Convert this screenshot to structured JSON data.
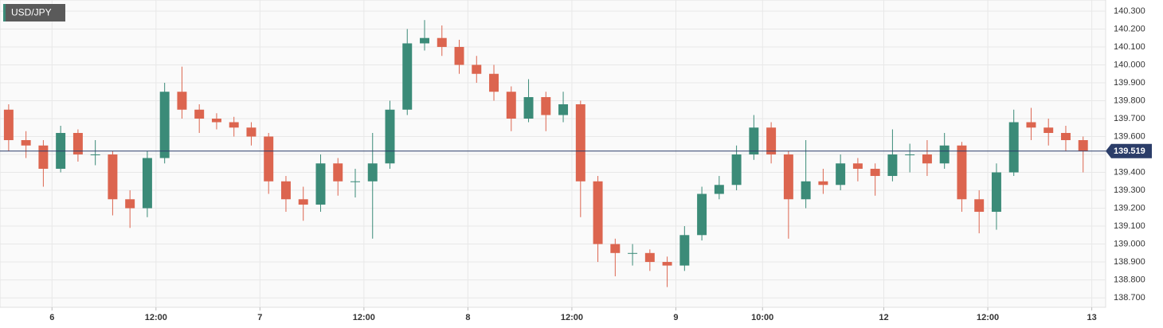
{
  "chart_data": {
    "type": "candlestick",
    "symbol": "USD/JPY",
    "x": [
      -5,
      -3,
      -1,
      1,
      3,
      5,
      7,
      9,
      11,
      13,
      15,
      17,
      19,
      21,
      23,
      25,
      27,
      29,
      31,
      33,
      35,
      37,
      39,
      41,
      43,
      45,
      47,
      49,
      51,
      53,
      55,
      57,
      59,
      61,
      63,
      65,
      67,
      69,
      71,
      73,
      75,
      77,
      79,
      81,
      83,
      85,
      87,
      89,
      91,
      93,
      95,
      97,
      99,
      101,
      103,
      105,
      107,
      109,
      111,
      113,
      115,
      117,
      119
    ],
    "open": [
      139.75,
      139.58,
      139.55,
      139.42,
      139.62,
      139.5,
      139.5,
      139.25,
      139.2,
      139.48,
      139.85,
      139.75,
      139.7,
      139.68,
      139.65,
      139.6,
      139.35,
      139.25,
      139.22,
      139.45,
      139.35,
      139.35,
      139.45,
      139.75,
      140.12,
      140.15,
      140.1,
      140.0,
      139.95,
      139.85,
      139.7,
      139.82,
      139.72,
      139.78,
      139.35,
      139.0,
      138.95,
      138.95,
      138.9,
      138.88,
      139.05,
      139.28,
      139.33,
      139.5,
      139.65,
      139.5,
      139.25,
      139.35,
      139.33,
      139.45,
      139.42,
      139.38,
      139.5,
      139.5,
      139.45,
      139.55,
      139.25,
      139.18,
      139.4,
      139.68,
      139.65,
      139.62,
      139.58
    ],
    "high": [
      139.78,
      139.63,
      139.58,
      139.66,
      139.64,
      139.58,
      139.52,
      139.3,
      139.52,
      139.9,
      139.99,
      139.78,
      139.73,
      139.71,
      139.68,
      139.62,
      139.38,
      139.32,
      139.5,
      139.48,
      139.42,
      139.62,
      139.8,
      140.2,
      140.25,
      140.22,
      140.14,
      140.05,
      140.0,
      139.88,
      139.92,
      139.85,
      139.85,
      139.8,
      139.38,
      139.03,
      139.0,
      138.97,
      138.93,
      139.1,
      139.32,
      139.38,
      139.55,
      139.72,
      139.68,
      139.52,
      139.58,
      139.42,
      139.5,
      139.48,
      139.45,
      139.64,
      139.56,
      139.58,
      139.62,
      139.57,
      139.3,
      139.45,
      139.75,
      139.76,
      139.7,
      139.66,
      139.6
    ],
    "low": [
      139.52,
      139.48,
      139.32,
      139.4,
      139.46,
      139.44,
      139.16,
      139.09,
      139.15,
      139.45,
      139.7,
      139.62,
      139.64,
      139.6,
      139.55,
      139.28,
      139.18,
      139.13,
      139.18,
      139.27,
      139.26,
      139.03,
      139.42,
      139.72,
      140.08,
      140.05,
      139.95,
      139.9,
      139.8,
      139.63,
      139.68,
      139.63,
      139.68,
      139.15,
      138.9,
      138.82,
      138.88,
      138.85,
      138.76,
      138.85,
      139.02,
      139.25,
      139.3,
      139.47,
      139.45,
      139.03,
      139.2,
      139.28,
      139.3,
      139.35,
      139.27,
      139.35,
      139.4,
      139.38,
      139.42,
      139.18,
      139.06,
      139.08,
      139.38,
      139.58,
      139.55,
      139.52,
      139.4
    ],
    "close": [
      139.58,
      139.55,
      139.42,
      139.62,
      139.5,
      139.5,
      139.25,
      139.2,
      139.48,
      139.85,
      139.75,
      139.7,
      139.68,
      139.65,
      139.6,
      139.35,
      139.25,
      139.22,
      139.45,
      139.35,
      139.35,
      139.45,
      139.75,
      140.12,
      140.15,
      140.1,
      140.0,
      139.95,
      139.85,
      139.7,
      139.82,
      139.72,
      139.78,
      139.35,
      139.0,
      138.95,
      138.95,
      138.9,
      138.88,
      139.05,
      139.28,
      139.33,
      139.5,
      139.65,
      139.5,
      139.25,
      139.35,
      139.33,
      139.45,
      139.42,
      139.38,
      139.5,
      139.5,
      139.45,
      139.55,
      139.25,
      139.18,
      139.4,
      139.68,
      139.65,
      139.62,
      139.58,
      139.519
    ],
    "last_price": 139.519,
    "up_color": "#3b8b78",
    "down_color": "#dc654f",
    "last_price_color": "#2b3d69",
    "xlim": [
      -6,
      121.6
    ],
    "xticks": [
      {
        "value": 0,
        "label": "6"
      },
      {
        "value": 12,
        "label": "12:00"
      },
      {
        "value": 24,
        "label": "7"
      },
      {
        "value": 36,
        "label": "12:00"
      },
      {
        "value": 48,
        "label": "8"
      },
      {
        "value": 60,
        "label": "12:00"
      },
      {
        "value": 72,
        "label": "9"
      },
      {
        "value": 82,
        "label": "10:00"
      },
      {
        "value": 96,
        "label": "12"
      },
      {
        "value": 108,
        "label": "12:00"
      },
      {
        "value": 120,
        "label": "13"
      }
    ],
    "ylim": [
      138.647,
      140.362
    ],
    "yticks": [
      {
        "value": 138.7,
        "label": "138.700"
      },
      {
        "value": 138.8,
        "label": "138.800"
      },
      {
        "value": 138.9,
        "label": "138.900"
      },
      {
        "value": 139.0,
        "label": "139.000"
      },
      {
        "value": 139.1,
        "label": "139.100"
      },
      {
        "value": 139.2,
        "label": "139.200"
      },
      {
        "value": 139.3,
        "label": "139.300"
      },
      {
        "value": 139.4,
        "label": "139.400"
      },
      {
        "value": 139.5,
        "label": "139.500"
      },
      {
        "value": 139.6,
        "label": "139.600"
      },
      {
        "value": 139.7,
        "label": "139.700"
      },
      {
        "value": 139.8,
        "label": "139.800"
      },
      {
        "value": 139.9,
        "label": "139.900"
      },
      {
        "value": 140.0,
        "label": "140.000"
      },
      {
        "value": 140.1,
        "label": "140.100"
      },
      {
        "value": 140.2,
        "label": "140.200"
      },
      {
        "value": 140.3,
        "label": "140.300"
      }
    ],
    "grid": true
  }
}
